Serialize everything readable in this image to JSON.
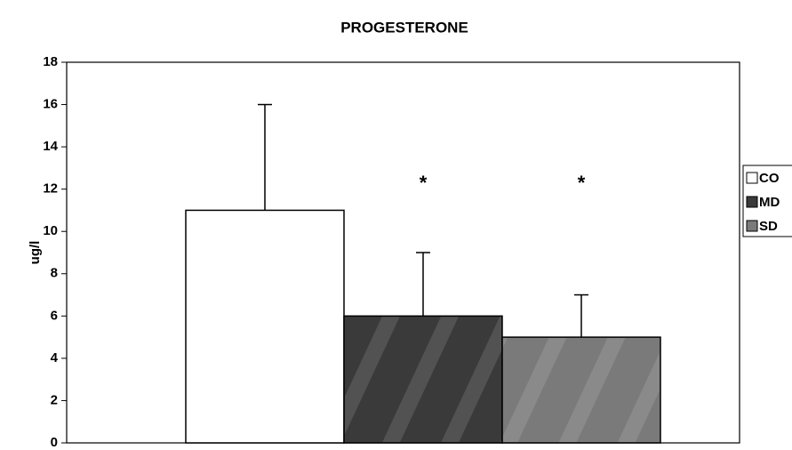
{
  "chart_data": {
    "type": "bar",
    "title": "PROGESTERONE",
    "y_label": "ug/l",
    "ylim": [
      0,
      18
    ],
    "yticks": [
      0,
      2,
      4,
      6,
      8,
      10,
      12,
      14,
      16,
      18
    ],
    "series": [
      {
        "name": "CO",
        "color": "#ffffff",
        "values": [
          11
        ],
        "errors": [
          5
        ]
      },
      {
        "name": "MD",
        "color": "#3a3a3a",
        "values": [
          6
        ],
        "errors": [
          3
        ],
        "annotation": "*"
      },
      {
        "name": "SD",
        "color": "#7a7a7a",
        "values": [
          5
        ],
        "errors": [
          2
        ],
        "annotation": "*"
      }
    ]
  }
}
